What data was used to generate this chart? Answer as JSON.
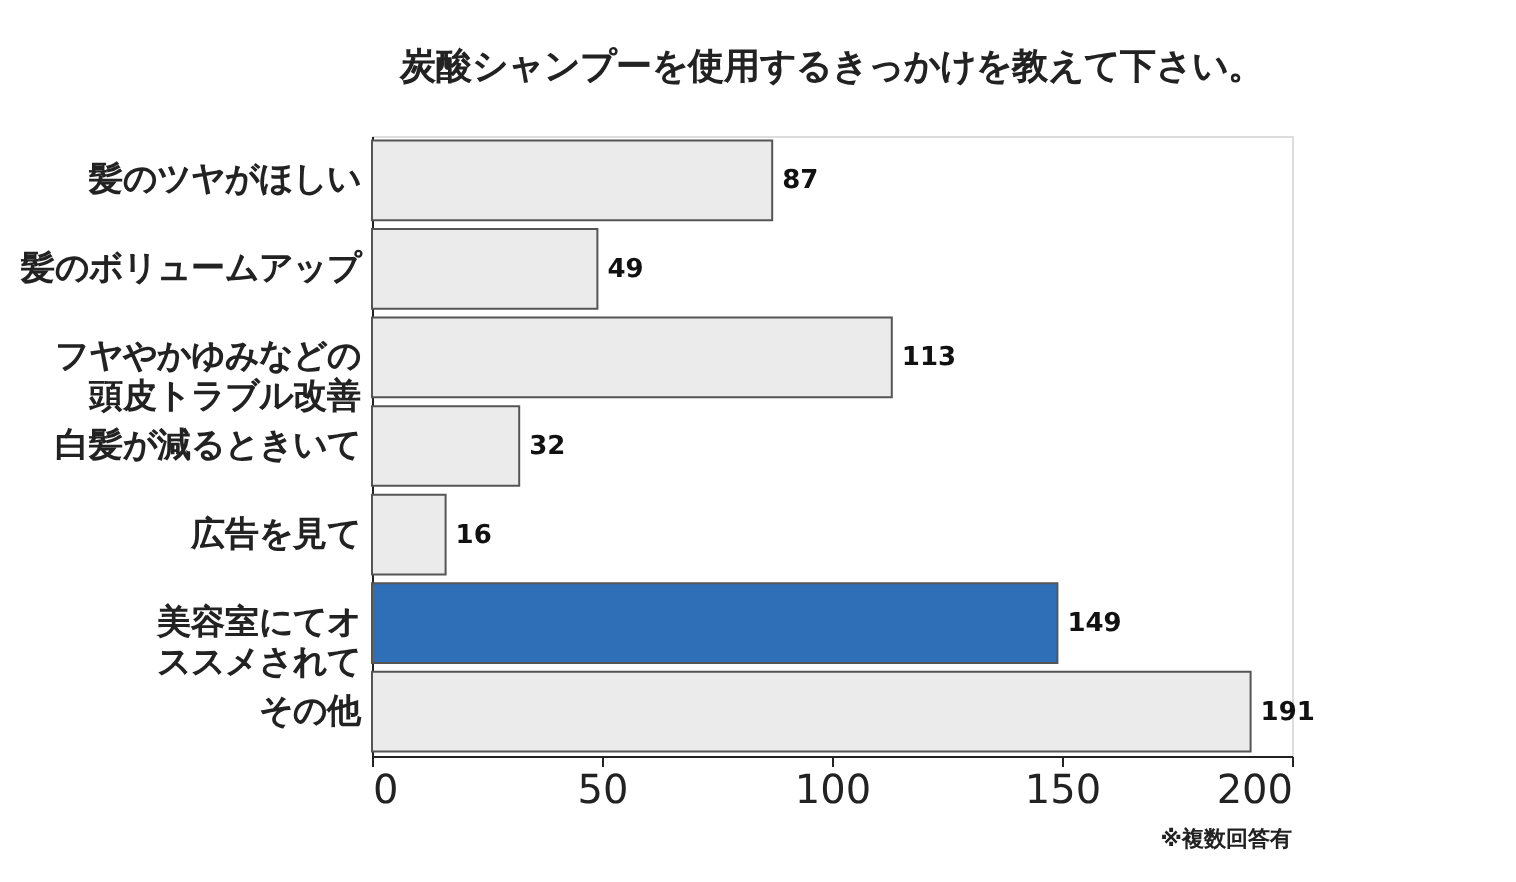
{
  "chart_data": {
    "type": "bar",
    "orientation": "horizontal",
    "title": "炭酸シャンプーを使用するきっかけを教えて下さい。",
    "categories": [
      "髪のツヤがほしい",
      "髪のボリュームアップ",
      "フヤやかゆみなどの頭皮トラブル改善",
      "白髪が減るときいて",
      "広告を見て",
      "美容室にてオススメされて",
      "その他"
    ],
    "values": [
      87,
      49,
      113,
      32,
      16,
      149,
      191
    ],
    "colors": [
      "#ebebeb",
      "#ebebeb",
      "#ebebeb",
      "#ebebeb",
      "#ebebeb",
      "#2f6fb8",
      "#ebebeb"
    ],
    "xlim": [
      0,
      200
    ],
    "xticks": [
      0,
      50,
      100,
      150,
      200
    ],
    "grid": false,
    "data_labels": true,
    "annotations": [
      "※複数回答有"
    ]
  }
}
